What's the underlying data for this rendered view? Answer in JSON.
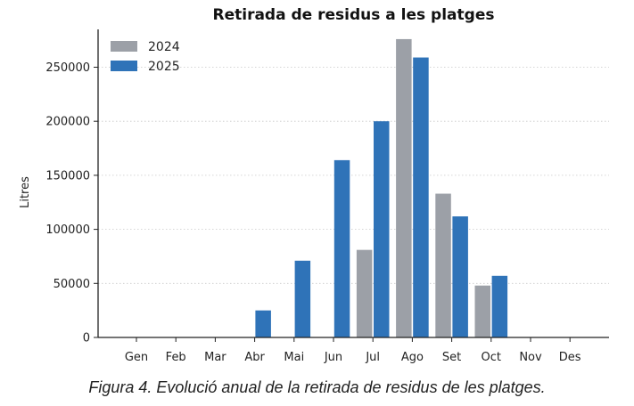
{
  "caption": "Figura 4. Evolució anual de la retirada de residus de les platges.",
  "chart_data": {
    "type": "bar",
    "title": "Retirada de residus a les platges",
    "xlabel": "",
    "ylabel": "Litres",
    "ylim": [
      0,
      285000
    ],
    "yticks": [
      0,
      50000,
      100000,
      150000,
      200000,
      250000
    ],
    "grid": "horizontal-dotted",
    "legend": "top-left",
    "categories": [
      "Gen",
      "Feb",
      "Mar",
      "Abr",
      "Mai",
      "Jun",
      "Jul",
      "Ago",
      "Set",
      "Oct",
      "Nov",
      "Des"
    ],
    "series": [
      {
        "name": "2024",
        "color": "#9ca0a7",
        "values": [
          0,
          0,
          0,
          0,
          0,
          0,
          81000,
          276000,
          133000,
          48000,
          0,
          0
        ]
      },
      {
        "name": "2025",
        "color": "#2f73b8",
        "values": [
          0,
          0,
          0,
          25000,
          71000,
          164000,
          200000,
          259000,
          112000,
          57000,
          0,
          0
        ]
      }
    ]
  }
}
